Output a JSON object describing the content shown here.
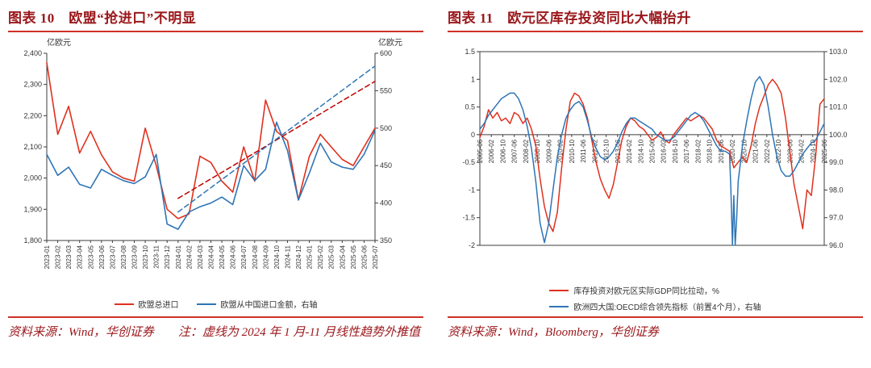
{
  "theme": {
    "title_color": "#9a161a",
    "rule_color": "#cf3027",
    "axis_color": "#3c3c3c",
    "text_color": "#333333",
    "red_line": "#e0301e",
    "blue_line": "#2e75b6"
  },
  "panels": [
    {
      "title": "图表 10　欧盟“抢进口”不明显",
      "source": "资料来源：Wind，华创证券　　注：虚线为 2024 年 1 月-11 月线性趋势外推值"
    },
    {
      "title": "图表 11　欧元区库存投资同比大幅抬升",
      "source": "资料来源：Wind，Bloomberg，华创证券"
    }
  ],
  "chart_data": [
    {
      "type": "line",
      "title": "欧盟“抢进口”不明显",
      "left_axis": {
        "label": "亿欧元",
        "min": 1800,
        "max": 2400,
        "tick_labels": [
          "2,400",
          "2,300",
          "2,200",
          "2,100",
          "2,000",
          "1,900",
          "1,800"
        ]
      },
      "right_axis": {
        "label": "亿欧元",
        "min": 350,
        "max": 600,
        "tick_labels": [
          "600",
          "550",
          "500",
          "450",
          "400",
          "350"
        ]
      },
      "x_labels_at_zero": false,
      "top_border": false,
      "x_tick_labels": [
        "2023-01",
        "2023-02",
        "2023-03",
        "2023-04",
        "2023-05",
        "2023-06",
        "2023-07",
        "2023-08",
        "2023-09",
        "2023-10",
        "2023-11",
        "2023-12",
        "2024-01",
        "2024-02",
        "2024-03",
        "2024-04",
        "2024-05",
        "2024-06",
        "2024-07",
        "2024-08",
        "2024-09",
        "2024-10",
        "2024-11",
        "2024-12",
        "2025-01",
        "2025-02",
        "2025-03",
        "2025-04",
        "2025-05",
        "2025-06",
        "2025-07"
      ],
      "series": [
        {
          "name": "欧盟总进口",
          "axis": "left",
          "color": "#e0301e",
          "width": 1.6,
          "in_legend": true,
          "values": [
            2370,
            2140,
            2230,
            2080,
            2150,
            2075,
            2020,
            2000,
            1990,
            2160,
            2040,
            1900,
            1870,
            1885,
            2070,
            2050,
            1990,
            1955,
            2100,
            1990,
            2250,
            2150,
            2120,
            1930,
            2070,
            2140,
            2100,
            2060,
            2040,
            2100,
            2160
          ]
        },
        {
          "name": "欧盟从中国进口金额，右轴",
          "axis": "right",
          "color": "#2e75b6",
          "width": 1.6,
          "in_legend": true,
          "values": [
            465,
            437,
            448,
            425,
            420,
            445,
            437,
            430,
            426,
            435,
            465,
            372,
            365,
            388,
            395,
            400,
            408,
            398,
            450,
            430,
            445,
            508,
            470,
            404,
            440,
            480,
            455,
            448,
            445,
            465,
            497
          ]
        },
        {
          "name": "欧盟总进口线性趋势外推（虚线）",
          "axis": "left",
          "color": "#c00000",
          "width": 1.5,
          "dash": "6,4",
          "in_legend": false,
          "values": [
            null,
            null,
            null,
            null,
            null,
            null,
            null,
            null,
            null,
            null,
            null,
            null,
            1935,
            null,
            null,
            null,
            null,
            null,
            null,
            null,
            null,
            null,
            null,
            null,
            null,
            null,
            null,
            null,
            null,
            null,
            2310
          ]
        },
        {
          "name": "欧盟从中国进口线性趋势外推（虚线）",
          "axis": "right",
          "color": "#2e75b6",
          "width": 1.5,
          "dash": "6,4",
          "in_legend": false,
          "values": [
            null,
            null,
            null,
            null,
            null,
            null,
            null,
            null,
            null,
            null,
            null,
            null,
            388,
            null,
            null,
            null,
            null,
            null,
            null,
            null,
            null,
            null,
            null,
            null,
            null,
            null,
            null,
            null,
            null,
            null,
            583
          ]
        }
      ]
    },
    {
      "type": "line",
      "title": "欧元区库存投资同比大幅抬升",
      "left_axis": {
        "label": "",
        "min": -2,
        "max": 1.5,
        "tick_labels": [
          "1.5",
          "1",
          "0.5",
          "0",
          "-0.5",
          "-1",
          "-1.5",
          "-2"
        ]
      },
      "right_axis": {
        "label": "",
        "min": 96,
        "max": 103,
        "tick_labels": [
          "103.0",
          "102.0",
          "101.0",
          "100.0",
          "99.0",
          "98.0",
          "97.0",
          "96.0"
        ]
      },
      "x_labels_at_zero": true,
      "top_border": true,
      "x_tick_labels": [
        "2005-06",
        "2006-02",
        "2006-10",
        "2007-06",
        "2008-02",
        "2008-10",
        "2009-06",
        "2010-02",
        "2010-10",
        "2011-06",
        "2012-02",
        "2012-10",
        "2013-06",
        "2014-02",
        "2014-10",
        "2015-06",
        "2016-02",
        "2016-10",
        "2017-06",
        "2018-02",
        "2018-10",
        "2019-06",
        "2020-02",
        "2020-10",
        "2021-06",
        "2022-02",
        "2022-10",
        "2023-06",
        "2024-02",
        "2024-10",
        "2025-06"
      ],
      "series": [
        {
          "name": "库存投资对欧元区实际GDP同比拉动，%",
          "axis": "left",
          "color": "#e0301e",
          "width": 1.5,
          "in_legend": true,
          "values": [
            -0.05,
            0.15,
            0.45,
            0.3,
            0.4,
            0.25,
            0.3,
            0.2,
            0.4,
            0.35,
            0.2,
            0.3,
            0.1,
            -0.2,
            -0.8,
            -1.3,
            -1.6,
            -1.75,
            -1.4,
            -0.6,
            0.1,
            0.6,
            0.75,
            0.7,
            0.55,
            0.3,
            -0.1,
            -0.5,
            -0.8,
            -1,
            -1.15,
            -0.9,
            -0.5,
            -0.1,
            0.15,
            0.3,
            0.25,
            0.15,
            0.1,
            0,
            -0.1,
            -0.05,
            0.05,
            -0.1,
            -0.15,
            0,
            0.1,
            0.2,
            0.3,
            0.25,
            0.3,
            0.35,
            0.3,
            0.2,
            0.1,
            -0.1,
            -0.2,
            -0.25,
            -0.3,
            -0.6,
            -0.5,
            -0.4,
            -0.5,
            -0.2,
            0.2,
            0.5,
            0.7,
            0.9,
            1,
            0.9,
            0.75,
            0.3,
            -0.3,
            -0.9,
            -1.3,
            -1.7,
            -1,
            -1.1,
            -0.4,
            0.55,
            0.65
          ]
        },
        {
          "name": "欧洲四大国:OECD综合领先指标（前置4个月），右轴",
          "axis": "right",
          "color": "#2e75b6",
          "width": 1.5,
          "in_legend": true,
          "x": [
            0,
            0.0125,
            0.025,
            0.0375,
            0.05,
            0.0625,
            0.075,
            0.0875,
            0.1,
            0.1125,
            0.125,
            0.1375,
            0.15,
            0.1625,
            0.175,
            0.1875,
            0.2,
            0.2125,
            0.225,
            0.2375,
            0.25,
            0.2625,
            0.275,
            0.2875,
            0.3,
            0.3125,
            0.325,
            0.3375,
            0.35,
            0.3625,
            0.375,
            0.3875,
            0.4,
            0.4125,
            0.425,
            0.4375,
            0.45,
            0.4625,
            0.475,
            0.4875,
            0.5,
            0.5125,
            0.525,
            0.5375,
            0.55,
            0.5625,
            0.575,
            0.5875,
            0.6,
            0.6125,
            0.625,
            0.6375,
            0.65,
            0.6625,
            0.675,
            0.6875,
            0.7,
            0.7125,
            0.725,
            0.729,
            0.7335,
            0.7375,
            0.7415,
            0.746,
            0.75,
            0.7625,
            0.775,
            0.7875,
            0.8,
            0.8125,
            0.825,
            0.8375,
            0.85,
            0.8625,
            0.875,
            0.8875,
            0.9,
            0.9125,
            0.925,
            0.9375,
            0.95,
            0.9625,
            0.975,
            0.9875,
            1
          ],
          "values": [
            100.2,
            100.4,
            100.7,
            100.9,
            101.1,
            101.3,
            101.4,
            101.5,
            101.5,
            101.3,
            100.9,
            100.3,
            99.5,
            98.3,
            96.8,
            96.1,
            96.8,
            98,
            99.2,
            100,
            100.6,
            100.9,
            101.1,
            101.2,
            101,
            100.5,
            99.9,
            99.5,
            99.2,
            99.1,
            99.2,
            99.4,
            99.7,
            100.1,
            100.4,
            100.6,
            100.6,
            100.5,
            100.4,
            100.3,
            100.2,
            100,
            99.9,
            99.8,
            99.8,
            99.9,
            100.1,
            100.3,
            100.5,
            100.7,
            100.8,
            100.7,
            100.5,
            100.2,
            99.9,
            99.6,
            99.4,
            99.4,
            99.3,
            98,
            96,
            97.8,
            96,
            97,
            98.3,
            99.6,
            100.5,
            101.3,
            101.9,
            102.1,
            101.8,
            101,
            100,
            99.2,
            98.7,
            98.5,
            98.5,
            98.7,
            99,
            99.3,
            99.5,
            99.7,
            99.8,
            100.1,
            100.4
          ]
        }
      ]
    }
  ]
}
